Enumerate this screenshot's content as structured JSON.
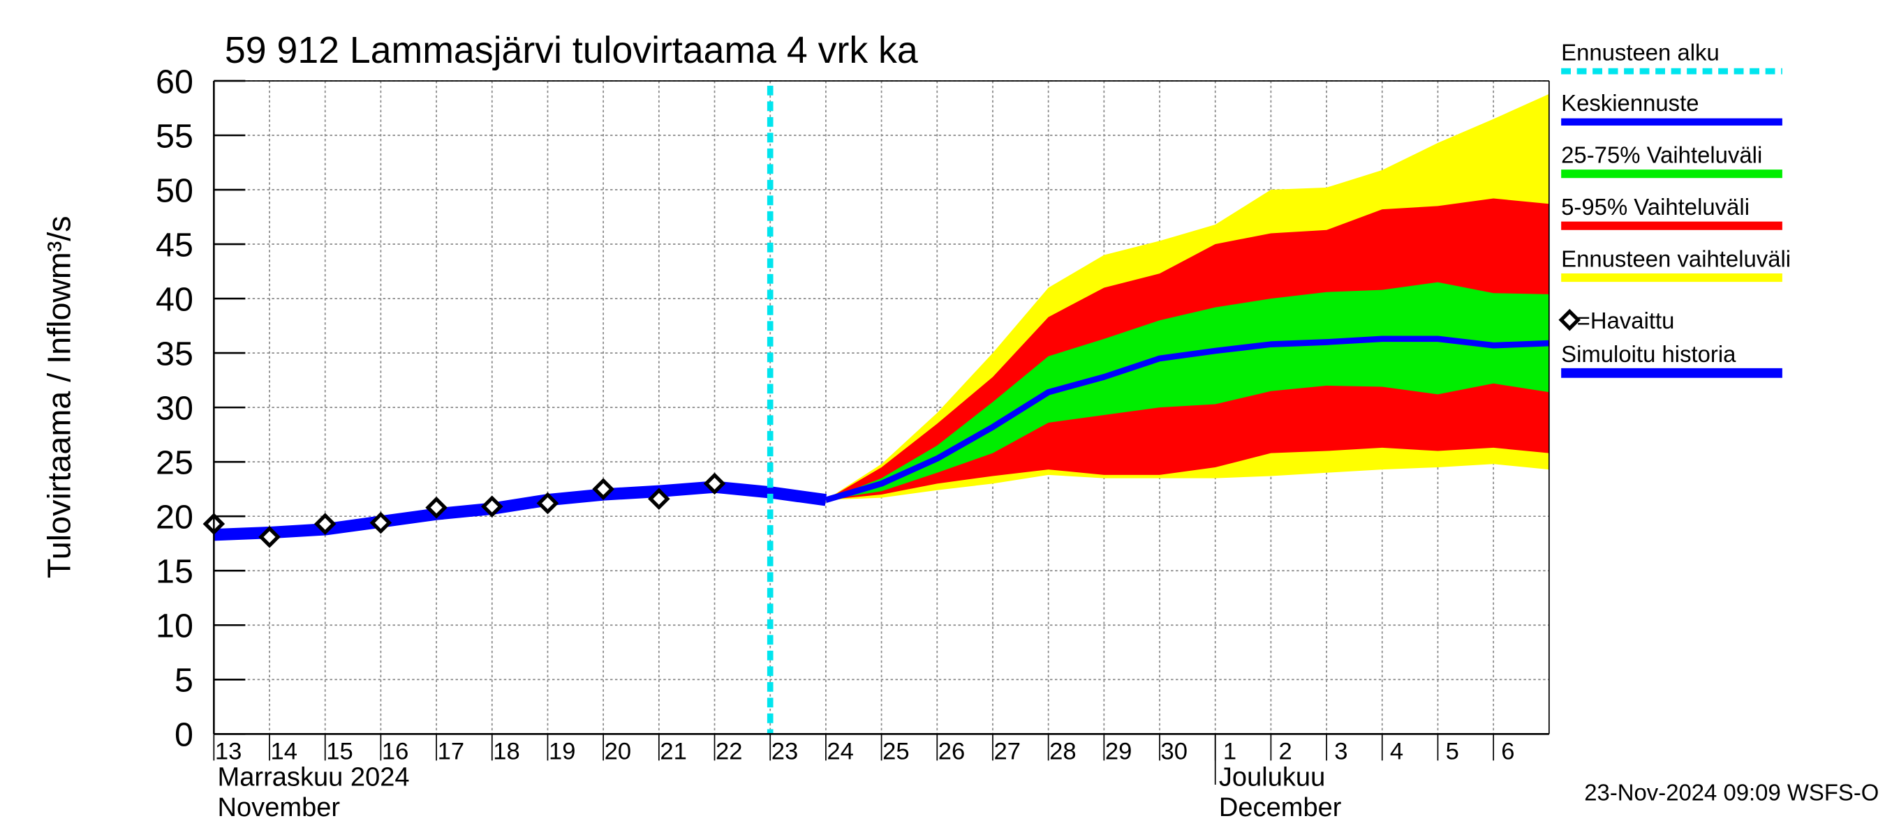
{
  "chart_data": {
    "type": "line",
    "title": "59 912 Lammasjärvi tulovirtaama 4 vrk ka",
    "ylabel": "Tulovirtaama / Inflow",
    "yunit": "m³/s",
    "timestamp": "23-Nov-2024 09:09 WSFS-O",
    "months": [
      {
        "x": "2024-11-13",
        "name": "Marraskuu 2024",
        "name_en": "November"
      },
      {
        "x": "2024-12-01",
        "name": "Joulukuu",
        "name_en": "December"
      }
    ],
    "xlim": [
      "2024-11-13",
      "2024-12-07"
    ],
    "xticks": [
      {
        "value": "2024-11-13",
        "label": "13"
      },
      {
        "value": "2024-11-14",
        "label": "14"
      },
      {
        "value": "2024-11-15",
        "label": "15"
      },
      {
        "value": "2024-11-16",
        "label": "16"
      },
      {
        "value": "2024-11-17",
        "label": "17"
      },
      {
        "value": "2024-11-18",
        "label": "18"
      },
      {
        "value": "2024-11-19",
        "label": "19"
      },
      {
        "value": "2024-11-20",
        "label": "20"
      },
      {
        "value": "2024-11-21",
        "label": "21"
      },
      {
        "value": "2024-11-22",
        "label": "22"
      },
      {
        "value": "2024-11-23",
        "label": "23"
      },
      {
        "value": "2024-11-24",
        "label": "24"
      },
      {
        "value": "2024-11-25",
        "label": "25"
      },
      {
        "value": "2024-11-26",
        "label": "26"
      },
      {
        "value": "2024-11-27",
        "label": "27"
      },
      {
        "value": "2024-11-28",
        "label": "28"
      },
      {
        "value": "2024-11-29",
        "label": "29"
      },
      {
        "value": "2024-11-30",
        "label": "30"
      },
      {
        "value": "2024-12-01",
        "label": "1"
      },
      {
        "value": "2024-12-02",
        "label": "2"
      },
      {
        "value": "2024-12-03",
        "label": "3"
      },
      {
        "value": "2024-12-04",
        "label": "4"
      },
      {
        "value": "2024-12-05",
        "label": "5"
      },
      {
        "value": "2024-12-06",
        "label": "6"
      }
    ],
    "ylim": [
      0,
      60
    ],
    "yticks": [
      0,
      5,
      10,
      15,
      20,
      25,
      30,
      35,
      40,
      45,
      50,
      55,
      60
    ],
    "grid": true,
    "forecast_start": {
      "name": "Ennusteen alku",
      "x": "2024-11-23",
      "color": "#00e5ee"
    },
    "series": [
      {
        "name": "Keskiennuste",
        "kind": "line",
        "color": "#0000ff",
        "width": 5,
        "x": [
          "2024-11-24",
          "2024-11-25",
          "2024-11-26",
          "2024-11-27",
          "2024-11-28",
          "2024-11-29",
          "2024-11-30",
          "2024-12-01",
          "2024-12-02",
          "2024-12-03",
          "2024-12-04",
          "2024-12-05",
          "2024-12-06",
          "2024-12-07"
        ],
        "values": [
          21.5,
          23.0,
          25.3,
          28.2,
          31.4,
          32.8,
          34.5,
          35.2,
          35.8,
          36.0,
          36.3,
          36.3,
          35.7,
          35.9
        ]
      },
      {
        "name": "25-75% Vaihteluväli",
        "kind": "band",
        "color": "#00ee00",
        "x": [
          "2024-11-24",
          "2024-11-25",
          "2024-11-26",
          "2024-11-27",
          "2024-11-28",
          "2024-11-29",
          "2024-11-30",
          "2024-12-01",
          "2024-12-02",
          "2024-12-03",
          "2024-12-04",
          "2024-12-05",
          "2024-12-06",
          "2024-12-07"
        ],
        "lower": [
          21.5,
          22.3,
          24.0,
          25.8,
          28.6,
          29.3,
          30.0,
          30.3,
          31.5,
          32.0,
          31.9,
          31.2,
          32.2,
          31.4
        ],
        "upper": [
          21.5,
          23.5,
          26.5,
          30.5,
          34.7,
          36.3,
          38.0,
          39.2,
          40.0,
          40.6,
          40.8,
          41.5,
          40.5,
          40.4
        ]
      },
      {
        "name": "5-95% Vaihteluväli",
        "kind": "band",
        "color": "#ff0000",
        "x": [
          "2024-11-24",
          "2024-11-25",
          "2024-11-26",
          "2024-11-27",
          "2024-11-28",
          "2024-11-29",
          "2024-11-30",
          "2024-12-01",
          "2024-12-02",
          "2024-12-03",
          "2024-12-04",
          "2024-12-05",
          "2024-12-06",
          "2024-12-07"
        ],
        "lower": [
          21.5,
          22.0,
          23.0,
          23.7,
          24.3,
          23.8,
          23.8,
          24.5,
          25.8,
          26.0,
          26.3,
          26.0,
          26.3,
          25.8
        ],
        "upper": [
          21.5,
          24.5,
          28.5,
          32.8,
          38.3,
          41.0,
          42.3,
          45.0,
          46.0,
          46.3,
          48.2,
          48.5,
          49.2,
          48.7
        ]
      },
      {
        "name": "Ennusteen vaihteluväli",
        "kind": "band",
        "color": "#ffff00",
        "x": [
          "2024-11-24",
          "2024-11-25",
          "2024-11-26",
          "2024-11-27",
          "2024-11-28",
          "2024-11-29",
          "2024-11-30",
          "2024-12-01",
          "2024-12-02",
          "2024-12-03",
          "2024-12-04",
          "2024-12-05",
          "2024-12-06",
          "2024-12-07"
        ],
        "lower": [
          21.5,
          21.7,
          22.4,
          23.0,
          23.8,
          23.5,
          23.5,
          23.5,
          23.7,
          24.0,
          24.3,
          24.5,
          24.8,
          24.3
        ],
        "upper": [
          21.5,
          24.8,
          29.5,
          35.0,
          41.0,
          44.0,
          45.3,
          46.8,
          50.0,
          50.2,
          51.8,
          54.3,
          56.5,
          58.8
        ]
      },
      {
        "name": "=Havaittu",
        "kind": "markers",
        "color": "#000000",
        "x": [
          "2024-11-13",
          "2024-11-14",
          "2024-11-15",
          "2024-11-16",
          "2024-11-17",
          "2024-11-18",
          "2024-11-19",
          "2024-11-20",
          "2024-11-21",
          "2024-11-22"
        ],
        "values": [
          19.3,
          18.1,
          19.3,
          19.4,
          20.8,
          20.9,
          21.2,
          22.5,
          21.6,
          23.0
        ]
      },
      {
        "name": "Simuloitu historia",
        "kind": "line",
        "color": "#0000ff",
        "width": 10,
        "x": [
          "2024-11-13",
          "2024-11-14",
          "2024-11-15",
          "2024-11-16",
          "2024-11-17",
          "2024-11-18",
          "2024-11-19",
          "2024-11-20",
          "2024-11-21",
          "2024-11-22",
          "2024-11-23",
          "2024-11-24"
        ],
        "values": [
          18.3,
          18.5,
          18.8,
          19.5,
          20.2,
          20.7,
          21.5,
          22.0,
          22.3,
          22.7,
          22.2,
          21.5
        ]
      }
    ]
  }
}
